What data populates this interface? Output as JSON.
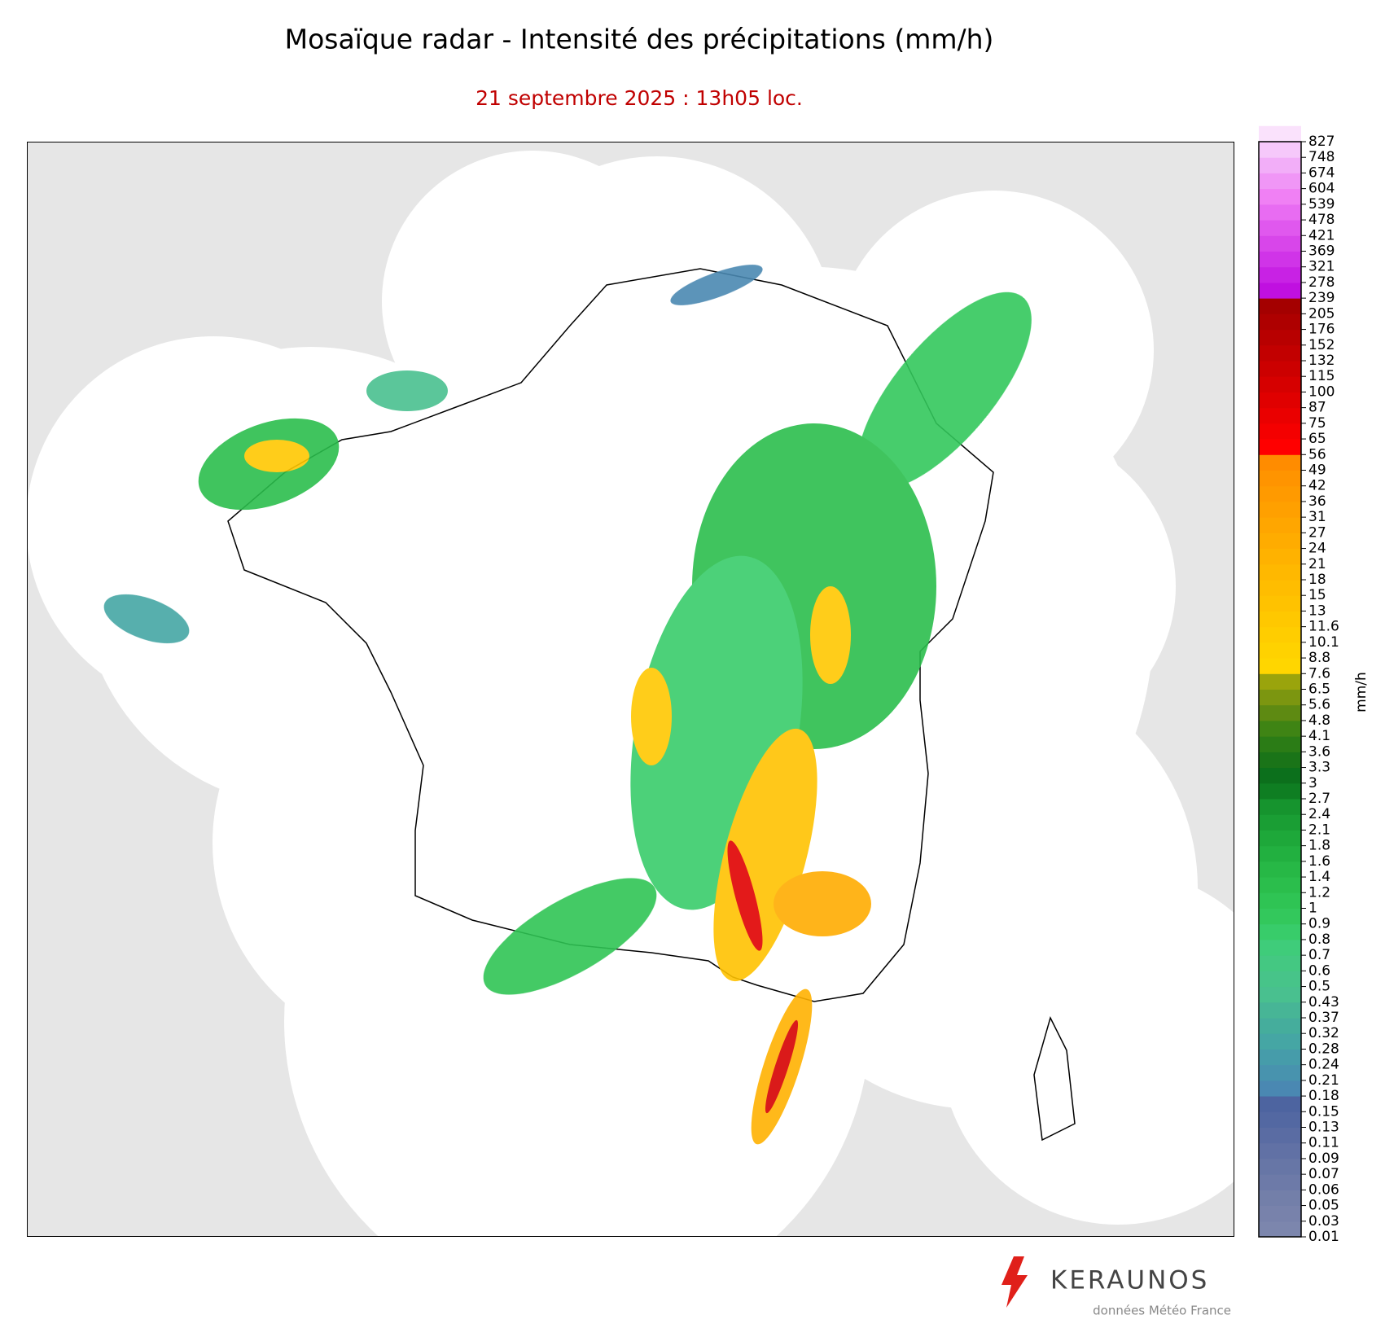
{
  "title": "Mosaïque radar - Intensité des précipitations (mm/h)",
  "subtitle": "21 septembre 2025 : 13h05 loc.",
  "colorbar": {
    "label": "mm/h",
    "ticks": [
      0.01,
      0.03,
      0.05,
      0.06,
      0.07,
      0.09,
      0.11,
      0.13,
      0.15,
      0.18,
      0.21,
      0.24,
      0.28,
      0.32,
      0.37,
      0.43,
      0.5,
      0.6,
      0.7,
      0.8,
      0.9,
      1,
      1.2,
      1.4,
      1.6,
      1.8,
      2.1,
      2.4,
      2.7,
      3,
      3.3,
      3.6,
      4.1,
      4.8,
      5.6,
      6.5,
      7.6,
      8.8,
      10.1,
      11.6,
      13,
      15,
      18,
      21,
      24,
      27,
      31,
      36,
      42,
      49,
      56,
      65,
      75,
      87,
      100,
      115,
      132,
      152,
      176,
      205,
      239,
      278,
      321,
      369,
      421,
      478,
      539,
      604,
      674,
      748,
      827
    ],
    "colors": [
      "#7c86ad",
      "#7882ab",
      "#737fa9",
      "#6d7aa8",
      "#6776a6",
      "#6171a5",
      "#5a6ca3",
      "#5368a2",
      "#4d64a0",
      "#4a88b2",
      "#4893ae",
      "#469caa",
      "#45a6a4",
      "#45ad9c",
      "#47b596",
      "#49c08f",
      "#47c489",
      "#44c882",
      "#3fcc7a",
      "#38cc6a",
      "#33c85c",
      "#2fc454",
      "#2bbe4c",
      "#27b846",
      "#22b040",
      "#1ea83a",
      "#1a9e34",
      "#16942e",
      "#0f7e22",
      "#0c701c",
      "#1a7418",
      "#2b7c16",
      "#3f8414",
      "#5e8a12",
      "#7c9610",
      "#9aa40c",
      "#ffd600",
      "#ffd200",
      "#ffcd00",
      "#ffc800",
      "#ffc200",
      "#ffbd00",
      "#ffb800",
      "#ffb200",
      "#ffac00",
      "#ffa600",
      "#ffa000",
      "#ff9a00",
      "#ff9400",
      "#ff8c00",
      "#ff0000",
      "#f40000",
      "#ea0000",
      "#e00000",
      "#d60000",
      "#cc0000",
      "#c20000",
      "#b80000",
      "#ae0000",
      "#a40000",
      "#c010e0",
      "#c822e4",
      "#d034e8",
      "#d846ea",
      "#e058ee",
      "#e86cf2",
      "#f080f4",
      "#f096f6",
      "#f2aef8",
      "#f6c8fa",
      "#fae2fc"
    ]
  },
  "logo": {
    "brand": "KERAUNOS",
    "credit": "données Météo France"
  }
}
